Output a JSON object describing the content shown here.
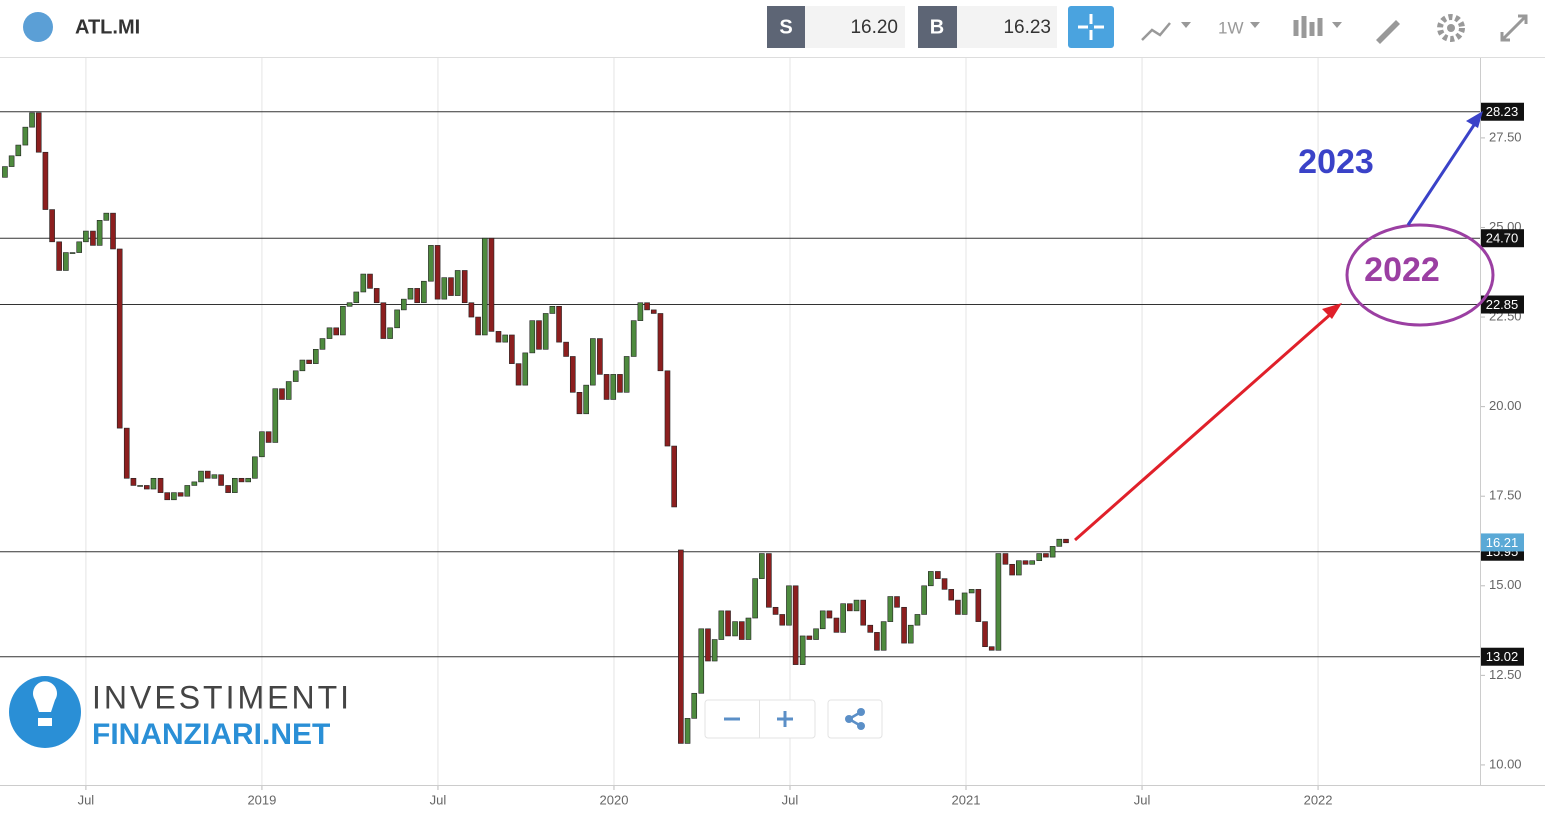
{
  "header": {
    "symbol": "ATL.MI",
    "sell_label": "S",
    "sell": "16.20",
    "buy_label": "B",
    "buy": "16.23",
    "interval": "1W"
  },
  "logo": [
    "INVESTIMENTI",
    "FINANZIARI.NET"
  ],
  "chart_data": {
    "type": "candlestick",
    "up_color": "#4e8a3e",
    "down_color": "#8c1f1f",
    "grid": "x",
    "xlim": [
      2018.256,
      2022.46
    ],
    "xticks": [
      {
        "value": 2018.5,
        "label": "Jul"
      },
      {
        "value": 2019,
        "label": "2019"
      },
      {
        "value": 2019.5,
        "label": "Jul"
      },
      {
        "value": 2020,
        "label": "2020"
      },
      {
        "value": 2020.5,
        "label": "Jul"
      },
      {
        "value": 2021,
        "label": "2021"
      },
      {
        "value": 2021.5,
        "label": "Jul"
      },
      {
        "value": 2022,
        "label": "2022"
      }
    ],
    "ylim": [
      9.44,
      29.73
    ],
    "yticks": [
      {
        "value": 10,
        "label": "10.00"
      },
      {
        "value": 12.5,
        "label": "12.50"
      },
      {
        "value": 15,
        "label": "15.00"
      },
      {
        "value": 17.5,
        "label": "17.50"
      },
      {
        "value": 20,
        "label": "20.00"
      },
      {
        "value": 22.5,
        "label": "22.50"
      },
      {
        "value": 25,
        "label": "25.00"
      },
      {
        "value": 27.5,
        "label": "27.50"
      }
    ],
    "levels": [
      28.23,
      {
        "value": 24.7,
        "label": "24.70"
      },
      22.85,
      {
        "value": 15.95,
        "label": "15.95"
      },
      13.02
    ],
    "last_price": 16.21,
    "annotations": [
      "2023",
      "2022"
    ],
    "x": [
      2018.27,
      2018.289,
      2018.308,
      2018.328,
      2018.347,
      2018.366,
      2018.385,
      2018.404,
      2018.424,
      2018.443,
      2018.462,
      2018.481,
      2018.5,
      2018.52,
      2018.539,
      2018.558,
      2018.577,
      2018.596,
      2018.616,
      2018.635,
      2018.654,
      2018.673,
      2018.692,
      2018.712,
      2018.731,
      2018.75,
      2018.769,
      2018.788,
      2018.808,
      2018.827,
      2018.846,
      2018.865,
      2018.884,
      2018.904,
      2018.923,
      2018.942,
      2018.961,
      2018.98,
      2019.0,
      2019.019,
      2019.038,
      2019.057,
      2019.076,
      2019.096,
      2019.115,
      2019.134,
      2019.153,
      2019.172,
      2019.192,
      2019.211,
      2019.23,
      2019.249,
      2019.268,
      2019.288,
      2019.307,
      2019.326,
      2019.345,
      2019.364,
      2019.384,
      2019.403,
      2019.422,
      2019.441,
      2019.46,
      2019.48,
      2019.499,
      2019.518,
      2019.537,
      2019.556,
      2019.576,
      2019.595,
      2019.614,
      2019.633,
      2019.652,
      2019.672,
      2019.691,
      2019.71,
      2019.729,
      2019.748,
      2019.768,
      2019.787,
      2019.806,
      2019.825,
      2019.844,
      2019.864,
      2019.883,
      2019.902,
      2019.921,
      2019.94,
      2019.96,
      2019.979,
      2019.998,
      2020.017,
      2020.036,
      2020.056,
      2020.075,
      2020.094,
      2020.113,
      2020.132,
      2020.152,
      2020.171,
      2020.19,
      2020.209,
      2020.228,
      2020.248,
      2020.267,
      2020.286,
      2020.305,
      2020.324,
      2020.344,
      2020.363,
      2020.382,
      2020.401,
      2020.42,
      2020.44,
      2020.459,
      2020.478,
      2020.497,
      2020.516,
      2020.536,
      2020.555,
      2020.574,
      2020.593,
      2020.612,
      2020.632,
      2020.651,
      2020.67,
      2020.689,
      2020.708,
      2020.728,
      2020.747,
      2020.766,
      2020.785,
      2020.804,
      2020.824,
      2020.843,
      2020.862,
      2020.881,
      2020.9,
      2020.92,
      2020.939,
      2020.958,
      2020.977,
      2020.996,
      2021.016,
      2021.035,
      2021.054,
      2021.073,
      2021.092,
      2021.112,
      2021.131,
      2021.15,
      2021.169,
      2021.188,
      2021.208,
      2021.227,
      2021.246,
      2021.265,
      2021.284
    ],
    "open": [
      26.4,
      26.7,
      27.0,
      27.3,
      27.8,
      28.2,
      27.1,
      25.5,
      24.6,
      23.8,
      24.3,
      24.3,
      24.6,
      24.9,
      24.5,
      25.2,
      25.4,
      24.4,
      19.4,
      18.0,
      17.8,
      17.8,
      17.7,
      18.0,
      17.6,
      17.4,
      17.6,
      17.5,
      17.8,
      17.9,
      18.2,
      18.0,
      18.1,
      17.8,
      17.6,
      18.0,
      17.9,
      18.0,
      18.6,
      19.3,
      19.0,
      20.5,
      20.2,
      20.7,
      21.0,
      21.3,
      21.2,
      21.6,
      21.9,
      22.2,
      22.0,
      22.8,
      22.9,
      23.2,
      23.7,
      23.3,
      22.9,
      21.9,
      22.2,
      22.7,
      23.0,
      23.3,
      22.9,
      23.5,
      24.5,
      23.0,
      23.6,
      23.1,
      23.8,
      22.9,
      22.5,
      22.0,
      24.7,
      22.1,
      21.8,
      22.0,
      21.2,
      20.6,
      21.5,
      22.4,
      21.6,
      22.6,
      22.8,
      21.8,
      21.4,
      20.4,
      19.8,
      20.6,
      21.9,
      20.9,
      20.2,
      20.9,
      20.4,
      21.4,
      22.4,
      22.9,
      22.7,
      22.6,
      21.0,
      18.9,
      16.0,
      10.6,
      11.3,
      12.0,
      13.8,
      12.9,
      13.5,
      14.3,
      13.6,
      14.0,
      13.5,
      14.1,
      15.2,
      15.9,
      14.4,
      14.2,
      13.9,
      15.0,
      12.8,
      13.6,
      13.5,
      13.8,
      14.3,
      14.1,
      13.7,
      14.5,
      14.3,
      14.6,
      13.9,
      13.7,
      13.2,
      14.0,
      14.7,
      14.4,
      13.4,
      13.9,
      14.2,
      15.0,
      15.4,
      15.2,
      14.9,
      14.6,
      14.2,
      14.8,
      14.9,
      14.0,
      13.3,
      13.2,
      15.9,
      15.6,
      15.3,
      15.7,
      15.6,
      15.7,
      15.9,
      15.8,
      16.1,
      16.3
    ],
    "close": [
      26.7,
      27.0,
      27.3,
      27.8,
      28.2,
      27.1,
      25.5,
      24.6,
      23.8,
      24.3,
      24.3,
      24.6,
      24.9,
      24.5,
      25.2,
      25.4,
      24.4,
      19.4,
      18.0,
      17.8,
      17.8,
      17.7,
      18.0,
      17.6,
      17.4,
      17.6,
      17.5,
      17.8,
      17.9,
      18.2,
      18.0,
      18.1,
      17.8,
      17.6,
      18.0,
      17.9,
      18.0,
      18.6,
      19.3,
      19.0,
      20.5,
      20.2,
      20.7,
      21.0,
      21.3,
      21.2,
      21.6,
      21.9,
      22.2,
      22.0,
      22.8,
      22.9,
      23.2,
      23.7,
      23.3,
      22.9,
      21.9,
      22.2,
      22.7,
      23.0,
      23.3,
      22.9,
      23.5,
      24.5,
      23.0,
      23.6,
      23.1,
      23.8,
      22.9,
      22.5,
      22.0,
      24.7,
      22.1,
      21.8,
      22.0,
      21.2,
      20.6,
      21.5,
      22.4,
      21.6,
      22.6,
      22.8,
      21.8,
      21.4,
      20.4,
      19.8,
      20.6,
      21.9,
      20.9,
      20.2,
      20.9,
      20.4,
      21.4,
      22.4,
      22.9,
      22.7,
      22.6,
      21.0,
      18.9,
      17.2,
      10.6,
      11.3,
      12.0,
      13.8,
      12.9,
      13.5,
      14.3,
      13.6,
      14.0,
      13.5,
      14.1,
      15.2,
      15.9,
      14.4,
      14.2,
      13.9,
      15.0,
      12.8,
      13.6,
      13.5,
      13.8,
      14.3,
      14.1,
      13.7,
      14.5,
      14.3,
      14.6,
      13.9,
      13.7,
      13.2,
      14.0,
      14.7,
      14.4,
      13.4,
      13.9,
      14.2,
      15.0,
      15.4,
      15.2,
      14.9,
      14.6,
      14.2,
      14.8,
      14.9,
      14.0,
      13.3,
      13.2,
      15.9,
      15.6,
      15.3,
      15.7,
      15.6,
      15.7,
      15.9,
      15.8,
      16.1,
      16.3,
      16.2
    ]
  }
}
